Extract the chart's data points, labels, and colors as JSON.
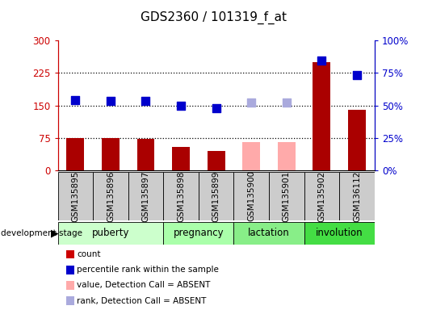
{
  "title": "GDS2360 / 101319_f_at",
  "samples": [
    "GSM135895",
    "GSM135896",
    "GSM135897",
    "GSM135898",
    "GSM135899",
    "GSM135900",
    "GSM135901",
    "GSM135902",
    "GSM136112"
  ],
  "bar_values": [
    75,
    75,
    72,
    55,
    45,
    65,
    65,
    250,
    140
  ],
  "bar_colors": [
    "#aa0000",
    "#aa0000",
    "#aa0000",
    "#aa0000",
    "#aa0000",
    "#ffaaaa",
    "#ffaaaa",
    "#aa0000",
    "#aa0000"
  ],
  "dot_values": [
    163,
    160,
    160,
    150,
    143,
    157,
    157,
    253,
    220
  ],
  "dot_colors": [
    "#0000cc",
    "#0000cc",
    "#0000cc",
    "#0000cc",
    "#0000cc",
    "#aaaadd",
    "#aaaadd",
    "#0000cc",
    "#0000cc"
  ],
  "left_ylim": [
    0,
    300
  ],
  "right_ylim": [
    0,
    100
  ],
  "left_yticks": [
    0,
    75,
    150,
    225,
    300
  ],
  "left_yticklabels": [
    "0",
    "75",
    "150",
    "225",
    "300"
  ],
  "right_yticks": [
    0,
    25,
    50,
    75,
    100
  ],
  "right_yticklabels": [
    "0%",
    "25%",
    "50%",
    "75%",
    "100%"
  ],
  "hlines": [
    75,
    150,
    225
  ],
  "stage_groups": [
    {
      "label": "puberty",
      "start": 0,
      "end": 3
    },
    {
      "label": "pregnancy",
      "start": 3,
      "end": 5
    },
    {
      "label": "lactation",
      "start": 5,
      "end": 7
    },
    {
      "label": "involution",
      "start": 7,
      "end": 9
    }
  ],
  "stage_colors": {
    "puberty": "#ccffcc",
    "pregnancy": "#aaffaa",
    "lactation": "#88ee88",
    "involution": "#44dd44"
  },
  "legend_items": [
    {
      "label": "count",
      "color": "#cc0000"
    },
    {
      "label": "percentile rank within the sample",
      "color": "#0000cc"
    },
    {
      "label": "value, Detection Call = ABSENT",
      "color": "#ffaaaa"
    },
    {
      "label": "rank, Detection Call = ABSENT",
      "color": "#aaaadd"
    }
  ],
  "bar_width": 0.5,
  "dot_size": 55,
  "xlabels_bg": "#cccccc"
}
